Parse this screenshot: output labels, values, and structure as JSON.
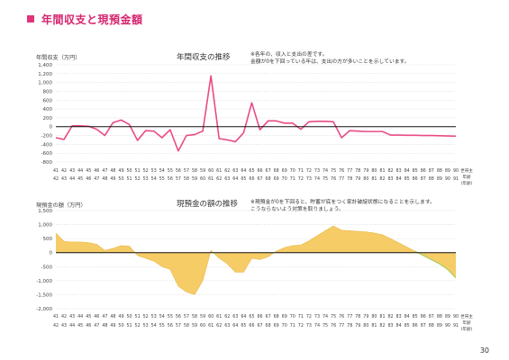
{
  "page": {
    "title": "年間収支と現預金額",
    "page_number": "30"
  },
  "chart_data": [
    {
      "type": "line",
      "title": "年間収支の推移",
      "ylabel": "年間収支（万円）",
      "note_lines": [
        "※各年の、収入と支出の差です。",
        "金額が0を下回っている年は、支出の方が多いことを示しています。"
      ],
      "ylim": [
        -800,
        1400
      ],
      "yticks": [
        -800,
        -600,
        -400,
        -200,
        0,
        200,
        400,
        600,
        800,
        1000,
        1200,
        1400
      ],
      "ytick_labels": [
        "-800",
        "-600",
        "-400",
        "-200",
        "0",
        "200",
        "400",
        "600",
        "800",
        "1,000",
        "1,200",
        "1,400"
      ],
      "grid": true,
      "color": "#e94b86",
      "x_row1": [
        "41",
        "42",
        "43",
        "44",
        "45",
        "46",
        "47",
        "48",
        "49",
        "50",
        "51",
        "52",
        "53",
        "54",
        "55",
        "56",
        "57",
        "58",
        "59",
        "60",
        "61",
        "62",
        "63",
        "64",
        "65",
        "66",
        "67",
        "68",
        "69",
        "70",
        "71",
        "72",
        "73",
        "74",
        "75",
        "76",
        "77",
        "78",
        "79",
        "80",
        "81",
        "82",
        "83",
        "84",
        "85",
        "86",
        "87",
        "88",
        "89",
        "90"
      ],
      "x_row2": [
        "42",
        "43",
        "44",
        "45",
        "46",
        "47",
        "48",
        "49",
        "50",
        "51",
        "52",
        "53",
        "54",
        "55",
        "56",
        "57",
        "58",
        "59",
        "60",
        "61",
        "62",
        "63",
        "64",
        "65",
        "66",
        "67",
        "68",
        "69",
        "70",
        "71",
        "72",
        "73",
        "74",
        "75",
        "76",
        "77",
        "78",
        "79",
        "80",
        "81",
        "82",
        "83",
        "84",
        "85",
        "86",
        "87",
        "88",
        "89",
        "90",
        "91"
      ],
      "x_axis_label": [
        "世帯主",
        "年齢",
        "(年齢)"
      ],
      "values": [
        -250,
        -290,
        20,
        20,
        10,
        -60,
        -200,
        90,
        150,
        50,
        -310,
        -90,
        -100,
        -250,
        -70,
        -550,
        -200,
        -180,
        -100,
        1150,
        -270,
        -300,
        -340,
        -140,
        540,
        -70,
        130,
        130,
        80,
        80,
        -60,
        110,
        120,
        120,
        110,
        -250,
        -90,
        -100,
        -110,
        -110,
        -110,
        -190,
        -190,
        -195,
        -195,
        -200,
        -200,
        -205,
        -210,
        -215
      ]
    },
    {
      "type": "area",
      "title": "現預金の額の推移",
      "ylabel": "現預金の額（万円）",
      "note_lines": [
        "※現預金が0を下回ると、貯蓄が底をつく家計破綻状態になることを示します。",
        "こうならないよう対策を取りましょう。"
      ],
      "ylim": [
        -2000,
        1500
      ],
      "yticks": [
        -2000,
        -1500,
        -1000,
        -500,
        0,
        500,
        1000,
        1500
      ],
      "ytick_labels": [
        "-2,000",
        "-1,500",
        "-1,000",
        "-500",
        "0",
        "500",
        "1,000",
        "1,500"
      ],
      "grid": true,
      "color": "#f5c85a",
      "color_negative": "#f5c85a",
      "color_line_end": "#a8d060",
      "x_row1": [
        "41",
        "42",
        "43",
        "44",
        "45",
        "46",
        "47",
        "48",
        "49",
        "50",
        "51",
        "52",
        "53",
        "54",
        "55",
        "56",
        "57",
        "58",
        "59",
        "60",
        "61",
        "62",
        "63",
        "64",
        "65",
        "66",
        "67",
        "68",
        "69",
        "70",
        "71",
        "72",
        "73",
        "74",
        "75",
        "76",
        "77",
        "78",
        "79",
        "80",
        "81",
        "82",
        "83",
        "84",
        "85",
        "86",
        "87",
        "88",
        "89",
        "90"
      ],
      "x_row2": [
        "42",
        "43",
        "44",
        "45",
        "46",
        "47",
        "48",
        "49",
        "50",
        "51",
        "52",
        "53",
        "54",
        "55",
        "56",
        "57",
        "58",
        "59",
        "60",
        "61",
        "62",
        "63",
        "64",
        "65",
        "66",
        "67",
        "68",
        "69",
        "70",
        "71",
        "72",
        "73",
        "74",
        "75",
        "76",
        "77",
        "78",
        "79",
        "80",
        "81",
        "82",
        "83",
        "84",
        "85",
        "86",
        "87",
        "88",
        "89",
        "90",
        "91"
      ],
      "x_axis_label": [
        "世帯主",
        "年齢",
        "(年齢)"
      ],
      "values": [
        700,
        400,
        380,
        380,
        360,
        300,
        80,
        150,
        250,
        230,
        -100,
        -200,
        -300,
        -500,
        -600,
        -1200,
        -1400,
        -1500,
        -1000,
        80,
        -200,
        -400,
        -700,
        -700,
        -200,
        -250,
        -150,
        50,
        180,
        250,
        270,
        420,
        600,
        780,
        950,
        800,
        780,
        760,
        740,
        700,
        640,
        500,
        350,
        200,
        50,
        -100,
        -250,
        -400,
        -600,
        -900
      ]
    }
  ]
}
